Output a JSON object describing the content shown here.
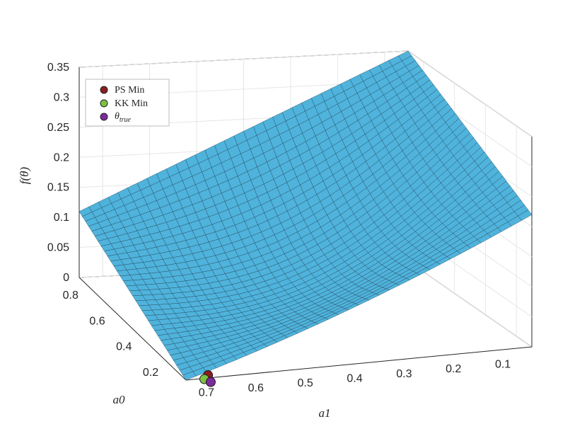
{
  "chart_data": {
    "type": "surface3d",
    "zlabel": "f(θ)",
    "xlabel": "a1",
    "ylabel": "a0",
    "zlim": [
      0,
      0.35
    ],
    "z_ticks": [
      "0",
      "0.05",
      "0.1",
      "0.15",
      "0.2",
      "0.25",
      "0.3",
      "0.35"
    ],
    "a1_ticks": [
      "0.7",
      "0.6",
      "0.5",
      "0.4",
      "0.3",
      "0.2",
      "0.1"
    ],
    "a0_ticks": [
      "0.2",
      "0.4",
      "0.6",
      "0.8"
    ],
    "a1_range": [
      0.05,
      0.75
    ],
    "a0_range": [
      0.1,
      0.9
    ],
    "grid": true,
    "legend_position": "top-left",
    "surface_color": "#4fb3dc",
    "surface_edge_color": "#1d3d4f",
    "legend": [
      {
        "label": "PS Min",
        "color": "#8c1d1d"
      },
      {
        "label": "KK Min",
        "color": "#7cc242"
      },
      {
        "label": "θ",
        "subscript": "true",
        "color": "#7d2c9c"
      }
    ],
    "points": [
      {
        "name": "PS Min",
        "a1": 0.7,
        "a0": 0.12,
        "z": 0.0
      },
      {
        "name": "KK Min",
        "a1": 0.71,
        "a0": 0.11,
        "z": 0.0
      },
      {
        "name": "θtrue",
        "a1": 0.7,
        "a0": 0.1,
        "z": 0.0
      }
    ],
    "surface_corner_values": {
      "a1_0.05_a0_0.1": 0.22,
      "a1_0.05_a0_0.9": 0.35,
      "a1_0.75_a0_0.9": 0.11,
      "a1_0.75_a0_0.1": 0.0
    }
  }
}
